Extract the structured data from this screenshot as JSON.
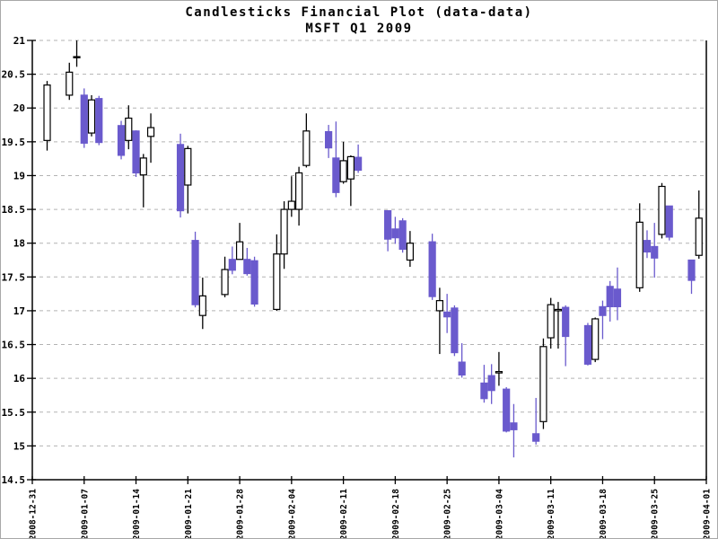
{
  "window": {
    "background": "#ffffff",
    "frame_color": "#a8a8a8"
  },
  "chart_data": {
    "type": "candlestick",
    "title": "Candlesticks Financial Plot (data-data)",
    "subtitle": "MSFT Q1 2009",
    "x_axis": {
      "start_date": "2008-12-31",
      "end_date": "2009-04-01",
      "tick_interval_days": 7,
      "tick_labels": [
        "2008-12-31",
        "2009-01-07",
        "2009-01-14",
        "2009-01-21",
        "2009-01-28",
        "2009-02-04",
        "2009-02-11",
        "2009-02-18",
        "2009-02-25",
        "2009-03-04",
        "2009-03-11",
        "2009-03-18",
        "2009-03-25",
        "2009-04-01"
      ]
    },
    "y_axis": {
      "min": 14.5,
      "max": 21,
      "tick_step": 0.5,
      "tick_labels": [
        "21",
        "20.5",
        "20",
        "19.5",
        "19",
        "18.5",
        "18",
        "17.5",
        "17",
        "16.5",
        "16",
        "15.5",
        "15",
        "14.5"
      ]
    },
    "grid": {
      "horizontal": true,
      "vertical": false,
      "style": "dashed",
      "color": "#b3b3b3"
    },
    "colors": {
      "up_fill": "#ffffff",
      "up_border": "#000000",
      "up_wick": "#000000",
      "down_fill": "#6a5acd",
      "down_border": "#6a5acd",
      "down_wick": "#6a5acd",
      "axis": "#000000"
    },
    "ohlc": [
      {
        "date": "2009-01-02",
        "o": 19.52,
        "h": 20.4,
        "l": 19.37,
        "c": 20.34
      },
      {
        "date": "2009-01-05",
        "o": 20.19,
        "h": 20.67,
        "l": 20.12,
        "c": 20.53
      },
      {
        "date": "2009-01-06",
        "o": 20.75,
        "h": 21.0,
        "l": 20.61,
        "c": 20.76
      },
      {
        "date": "2009-01-07",
        "o": 20.19,
        "h": 20.29,
        "l": 19.41,
        "c": 19.48
      },
      {
        "date": "2009-01-08",
        "o": 19.63,
        "h": 20.19,
        "l": 19.58,
        "c": 20.12
      },
      {
        "date": "2009-01-09",
        "o": 20.14,
        "h": 20.18,
        "l": 19.45,
        "c": 19.49
      },
      {
        "date": "2009-01-12",
        "o": 19.74,
        "h": 19.81,
        "l": 19.24,
        "c": 19.3
      },
      {
        "date": "2009-01-13",
        "o": 19.52,
        "h": 20.04,
        "l": 19.39,
        "c": 19.85
      },
      {
        "date": "2009-01-14",
        "o": 19.66,
        "h": 19.67,
        "l": 18.98,
        "c": 19.04
      },
      {
        "date": "2009-01-15",
        "o": 19.01,
        "h": 19.32,
        "l": 18.53,
        "c": 19.26
      },
      {
        "date": "2009-01-16",
        "o": 19.58,
        "h": 19.92,
        "l": 19.19,
        "c": 19.71
      },
      {
        "date": "2009-01-20",
        "o": 19.46,
        "h": 19.62,
        "l": 18.38,
        "c": 18.48
      },
      {
        "date": "2009-01-21",
        "o": 18.86,
        "h": 19.44,
        "l": 18.44,
        "c": 19.4
      },
      {
        "date": "2009-01-22",
        "o": 18.04,
        "h": 18.17,
        "l": 17.05,
        "c": 17.09
      },
      {
        "date": "2009-01-23",
        "o": 16.93,
        "h": 17.49,
        "l": 16.73,
        "c": 17.22
      },
      {
        "date": "2009-01-26",
        "o": 17.24,
        "h": 17.8,
        "l": 17.2,
        "c": 17.61
      },
      {
        "date": "2009-01-27",
        "o": 17.76,
        "h": 17.95,
        "l": 17.54,
        "c": 17.6
      },
      {
        "date": "2009-01-28",
        "o": 17.76,
        "h": 18.3,
        "l": 17.76,
        "c": 18.02
      },
      {
        "date": "2009-01-29",
        "o": 17.76,
        "h": 17.93,
        "l": 17.52,
        "c": 17.55
      },
      {
        "date": "2009-01-30",
        "o": 17.74,
        "h": 17.8,
        "l": 17.06,
        "c": 17.1
      },
      {
        "date": "2009-02-02",
        "o": 17.02,
        "h": 18.13,
        "l": 17.0,
        "c": 17.84
      },
      {
        "date": "2009-02-03",
        "o": 17.84,
        "h": 18.62,
        "l": 17.62,
        "c": 18.5
      },
      {
        "date": "2009-02-04",
        "o": 18.5,
        "h": 18.99,
        "l": 18.39,
        "c": 18.62
      },
      {
        "date": "2009-02-05",
        "o": 18.5,
        "h": 19.13,
        "l": 18.26,
        "c": 19.04
      },
      {
        "date": "2009-02-06",
        "o": 19.15,
        "h": 19.92,
        "l": 19.12,
        "c": 19.66
      },
      {
        "date": "2009-02-09",
        "o": 19.65,
        "h": 19.75,
        "l": 19.26,
        "c": 19.41
      },
      {
        "date": "2009-02-10",
        "o": 19.26,
        "h": 19.8,
        "l": 18.68,
        "c": 18.75
      },
      {
        "date": "2009-02-11",
        "o": 18.91,
        "h": 19.5,
        "l": 18.88,
        "c": 19.22
      },
      {
        "date": "2009-02-12",
        "o": 18.95,
        "h": 19.3,
        "l": 18.55,
        "c": 19.28
      },
      {
        "date": "2009-02-13",
        "o": 19.27,
        "h": 19.46,
        "l": 19.04,
        "c": 19.08
      },
      {
        "date": "2009-02-17",
        "o": 18.48,
        "h": 18.48,
        "l": 17.88,
        "c": 18.06
      },
      {
        "date": "2009-02-18",
        "o": 18.21,
        "h": 18.39,
        "l": 17.99,
        "c": 18.08
      },
      {
        "date": "2009-02-19",
        "o": 18.33,
        "h": 18.37,
        "l": 17.86,
        "c": 17.91
      },
      {
        "date": "2009-02-20",
        "o": 17.75,
        "h": 18.18,
        "l": 17.65,
        "c": 18.0
      },
      {
        "date": "2009-02-23",
        "o": 18.02,
        "h": 18.14,
        "l": 17.16,
        "c": 17.21
      },
      {
        "date": "2009-02-24",
        "o": 17.0,
        "h": 17.34,
        "l": 16.36,
        "c": 17.15
      },
      {
        "date": "2009-02-25",
        "o": 16.98,
        "h": 17.25,
        "l": 16.67,
        "c": 16.91
      },
      {
        "date": "2009-02-26",
        "o": 17.04,
        "h": 17.08,
        "l": 16.33,
        "c": 16.38
      },
      {
        "date": "2009-02-27",
        "o": 16.24,
        "h": 16.52,
        "l": 16.01,
        "c": 16.05
      },
      {
        "date": "2009-03-02",
        "o": 15.93,
        "h": 16.2,
        "l": 15.64,
        "c": 15.7
      },
      {
        "date": "2009-03-03",
        "o": 16.04,
        "h": 16.21,
        "l": 15.62,
        "c": 15.82
      },
      {
        "date": "2009-03-04",
        "o": 16.08,
        "h": 16.39,
        "l": 15.89,
        "c": 16.1
      },
      {
        "date": "2009-03-05",
        "o": 15.84,
        "h": 15.87,
        "l": 15.2,
        "c": 15.22
      },
      {
        "date": "2009-03-06",
        "o": 15.34,
        "h": 15.62,
        "l": 14.83,
        "c": 15.24
      },
      {
        "date": "2009-03-09",
        "o": 15.18,
        "h": 15.71,
        "l": 15.02,
        "c": 15.07
      },
      {
        "date": "2009-03-10",
        "o": 15.36,
        "h": 16.59,
        "l": 15.25,
        "c": 16.47
      },
      {
        "date": "2009-03-11",
        "o": 16.6,
        "h": 17.19,
        "l": 16.44,
        "c": 17.09
      },
      {
        "date": "2009-03-12",
        "o": 17.0,
        "h": 17.13,
        "l": 16.44,
        "c": 17.02
      },
      {
        "date": "2009-03-13",
        "o": 17.05,
        "h": 17.08,
        "l": 16.18,
        "c": 16.62
      },
      {
        "date": "2009-03-16",
        "o": 16.78,
        "h": 16.82,
        "l": 16.19,
        "c": 16.21
      },
      {
        "date": "2009-03-17",
        "o": 16.28,
        "h": 16.9,
        "l": 16.24,
        "c": 16.88
      },
      {
        "date": "2009-03-18",
        "o": 17.06,
        "h": 17.15,
        "l": 16.58,
        "c": 16.93
      },
      {
        "date": "2009-03-19",
        "o": 17.36,
        "h": 17.44,
        "l": 16.84,
        "c": 17.06
      },
      {
        "date": "2009-03-20",
        "o": 17.32,
        "h": 17.64,
        "l": 16.86,
        "c": 17.06
      },
      {
        "date": "2009-03-23",
        "o": 17.34,
        "h": 18.59,
        "l": 17.28,
        "c": 18.31
      },
      {
        "date": "2009-03-24",
        "o": 18.04,
        "h": 18.19,
        "l": 17.78,
        "c": 17.87
      },
      {
        "date": "2009-03-25",
        "o": 17.95,
        "h": 18.3,
        "l": 17.49,
        "c": 17.78
      },
      {
        "date": "2009-03-26",
        "o": 18.13,
        "h": 18.89,
        "l": 18.07,
        "c": 18.84
      },
      {
        "date": "2009-03-27",
        "o": 18.55,
        "h": 18.55,
        "l": 18.04,
        "c": 18.09
      },
      {
        "date": "2009-03-30",
        "o": 17.75,
        "h": 17.75,
        "l": 17.25,
        "c": 17.45
      },
      {
        "date": "2009-03-31",
        "o": 17.82,
        "h": 18.78,
        "l": 17.77,
        "c": 18.37
      }
    ]
  }
}
